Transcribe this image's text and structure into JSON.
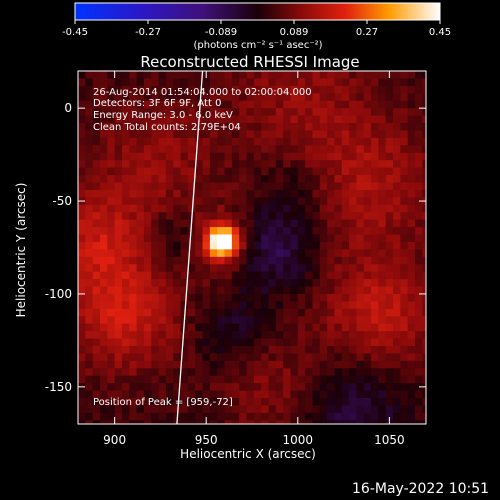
{
  "colorbar": {
    "ticks": [
      "-0.45",
      "-0.27",
      "-0.089",
      "0.089",
      "0.27",
      "0.45"
    ],
    "unit": "(photons cm⁻² s⁻¹ asec⁻²)"
  },
  "info": {
    "time": "26-Aug-2014 01:54:04.000 to 02:00:04.000",
    "detectors": "Detectors: 3F 6F 9F, Att 0",
    "energy": "Energy Range: 3.0 - 6.0 keV",
    "clean": "Clean    Total counts: 2.79E+04"
  },
  "peak_label": "Position of Peak = [959,-72]",
  "timestamp": "16-May-2022 10:51",
  "chart_data": {
    "type": "heatmap",
    "title": "Reconstructed RHESSI Image",
    "xlabel": "Heliocentric X (arcsec)",
    "ylabel": "Heliocentric Y (arcsec)",
    "xlim": [
      880,
      1070
    ],
    "ylim": [
      -170,
      20
    ],
    "x_ticks": [
      "900",
      "950",
      "1000",
      "1050"
    ],
    "y_ticks": [
      "0",
      "-50",
      "-100",
      "-150"
    ],
    "x_tick_values": [
      900,
      950,
      1000,
      1050
    ],
    "y_tick_values": [
      0,
      -50,
      -100,
      -150
    ],
    "colorbar_range": [
      -0.45,
      0.45
    ],
    "peak": {
      "x": 959,
      "y": -72,
      "value": 0.45
    },
    "limb_line": [
      [
        948,
        20
      ],
      [
        934,
        -170
      ]
    ]
  }
}
